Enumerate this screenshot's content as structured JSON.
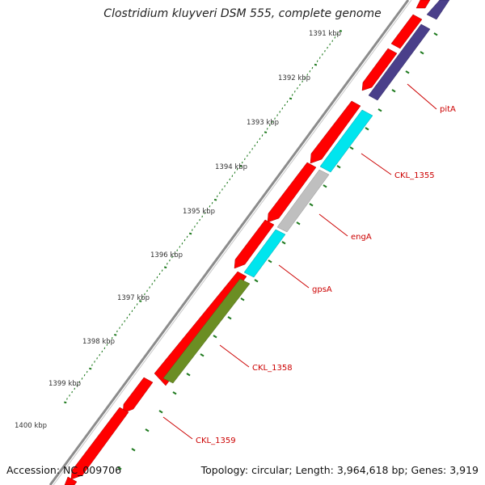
{
  "header": {
    "title": "Clostridium kluyveri DSM 555, complete genome"
  },
  "footer": {
    "accession": "Accession: NC_009706",
    "summary": "Topology: circular; Length: 3,964,618 bp; Genes: 3,919"
  },
  "scale": {
    "labels": [
      "1391 kbp",
      "1392 kbp",
      "1393 kbp",
      "1394 kbp",
      "1395 kbp",
      "1396 kbp",
      "1397 kbp",
      "1398 kbp",
      "1399 kbp",
      "1400 kbp"
    ]
  },
  "colors": {
    "backbone": "#8c8c8c",
    "forward_cds": "#ff0000",
    "tick": "#1f7a1f",
    "label": "#cc0000"
  },
  "gene_labels": [
    {
      "name": "pitA",
      "color": "#4a3f8a"
    },
    {
      "name": "CKL_1355",
      "color": "#00e5ee"
    },
    {
      "name": "engA",
      "color": "#bfbfbf"
    },
    {
      "name": "gpsA",
      "color": "#00e5ee"
    },
    {
      "name": "CKL_1358",
      "color": "#6b8e23"
    },
    {
      "name": "CKL_1359",
      "color": "#ff0000"
    }
  ]
}
